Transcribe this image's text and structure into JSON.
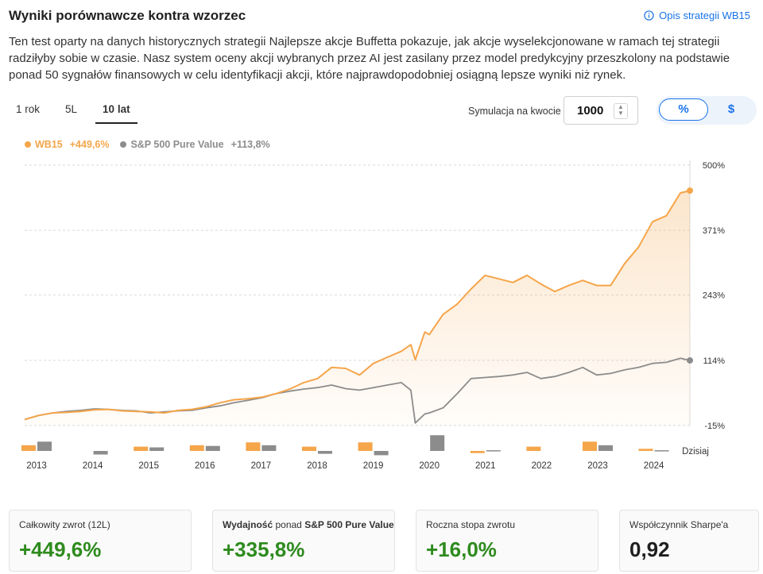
{
  "header": {
    "title": "Wyniki porównawcze kontra wzorzec",
    "info_link": "Opis strategii WB15",
    "description": "Ten test oparty na danych historycznych strategii Najlepsze akcje Buffetta pokazuje, jak akcje wyselekcjonowane w ramach tej strategii radziłyby sobie w czasie. Nasz system oceny akcji wybranych przez AI jest zasilany przez model predykcyjny przeszkolony na podstawie ponad 50 sygnałów finansowych w celu identyfikacji akcji, które najprawdopodobniej osiągną lepsze wyniki niż rynek."
  },
  "controls": {
    "periods": [
      "1 rok",
      "5L",
      "10 lat"
    ],
    "active_period": "10 lat",
    "simulation_label": "Symulacja na kwocie",
    "simulation_value": "1000",
    "toggle_percent": "%",
    "toggle_dollar": "$",
    "active_toggle": "%"
  },
  "legend": {
    "series_a_name": "WB15",
    "series_a_value": "+449,6%",
    "series_b_name": "S&P 500 Pure Value",
    "series_b_value": "+113,8%"
  },
  "colors": {
    "wb15": "#f5a54a",
    "benchmark": "#8c8c8c",
    "accent": "#1a73e8",
    "positive": "#2e8b1e"
  },
  "chart_data": {
    "type": "area",
    "y_tick_labels": [
      "500%",
      "371%",
      "243%",
      "114%",
      "-15%"
    ],
    "ylim": [
      -15,
      500
    ],
    "x_labels": [
      "2013",
      "2014",
      "2015",
      "2016",
      "2017",
      "2018",
      "2019",
      "2020",
      "2021",
      "2022",
      "2023",
      "2024"
    ],
    "today_label": "Dzisiaj",
    "grid": "horizontal dashed",
    "series": [
      {
        "name": "WB15",
        "final_value": 449.6,
        "x": [
          2013.0,
          2013.25,
          2013.5,
          2013.75,
          2014.0,
          2014.25,
          2014.5,
          2014.75,
          2015.0,
          2015.25,
          2015.5,
          2015.75,
          2016.0,
          2016.25,
          2016.5,
          2016.75,
          2017.0,
          2017.25,
          2017.5,
          2017.75,
          2018.0,
          2018.25,
          2018.5,
          2018.75,
          2019.0,
          2019.25,
          2019.5,
          2019.75,
          2019.92,
          2020.0,
          2020.17,
          2020.25,
          2020.5,
          2020.75,
          2021.0,
          2021.25,
          2021.5,
          2021.75,
          2022.0,
          2022.25,
          2022.5,
          2022.75,
          2023.0,
          2023.25,
          2023.5,
          2023.75,
          2024.0,
          2024.25,
          2024.5,
          2024.75,
          2024.92
        ],
        "values": [
          -3,
          5,
          10,
          11,
          13,
          16,
          17,
          14,
          13,
          12,
          10,
          15,
          17,
          22,
          30,
          36,
          38,
          41,
          48,
          57,
          70,
          78,
          100,
          98,
          85,
          108,
          120,
          132,
          145,
          115,
          170,
          165,
          205,
          225,
          255,
          282,
          275,
          268,
          282,
          265,
          250,
          262,
          272,
          262,
          262,
          305,
          338,
          388,
          400,
          445,
          449.6
        ]
      },
      {
        "name": "S&P 500 Pure Value",
        "final_value": 113.8,
        "x": [
          2013.0,
          2013.25,
          2013.5,
          2013.75,
          2014.0,
          2014.25,
          2014.5,
          2014.75,
          2015.0,
          2015.25,
          2015.5,
          2015.75,
          2016.0,
          2016.25,
          2016.5,
          2016.75,
          2017.0,
          2017.25,
          2017.5,
          2017.75,
          2018.0,
          2018.25,
          2018.5,
          2018.75,
          2019.0,
          2019.25,
          2019.5,
          2019.75,
          2019.92,
          2020.0,
          2020.17,
          2020.25,
          2020.5,
          2020.75,
          2021.0,
          2021.25,
          2021.5,
          2021.75,
          2022.0,
          2022.25,
          2022.5,
          2022.75,
          2023.0,
          2023.25,
          2023.5,
          2023.75,
          2024.0,
          2024.25,
          2024.5,
          2024.75,
          2024.92
        ],
        "values": [
          -3,
          5,
          10,
          13,
          15,
          18,
          17,
          15,
          14,
          10,
          12,
          14,
          15,
          20,
          24,
          30,
          35,
          40,
          48,
          53,
          57,
          60,
          65,
          58,
          55,
          60,
          65,
          70,
          55,
          -10,
          8,
          10,
          20,
          48,
          78,
          80,
          82,
          85,
          90,
          78,
          82,
          90,
          100,
          85,
          88,
          95,
          100,
          108,
          110,
          118,
          113.8
        ]
      }
    ],
    "annual_bars": {
      "categories": [
        "2013",
        "2014",
        "2015",
        "2016",
        "2017",
        "2018",
        "2019",
        "2020",
        "2021",
        "2022",
        "2023",
        "2024"
      ],
      "wb15": [
        8,
        0,
        6,
        8,
        12,
        6,
        12,
        0,
        -3,
        6,
        13,
        3
      ],
      "benchmark": [
        13,
        -5,
        5,
        7,
        8,
        -4,
        -6,
        22,
        1,
        0,
        8,
        1
      ]
    }
  },
  "stats": [
    {
      "label": "Całkowity zwrot (12L)",
      "value": "+449,6%"
    },
    {
      "label_prefix": "Wydajność",
      "label_mid": " ponad ",
      "label_suffix": "S&P 500 Pure Value",
      "value": "+335,8%"
    },
    {
      "label": "Roczna stopa zwrotu",
      "value": "+16,0%"
    },
    {
      "label": "Współczynnik Sharpe'a",
      "value": "0,92"
    }
  ]
}
